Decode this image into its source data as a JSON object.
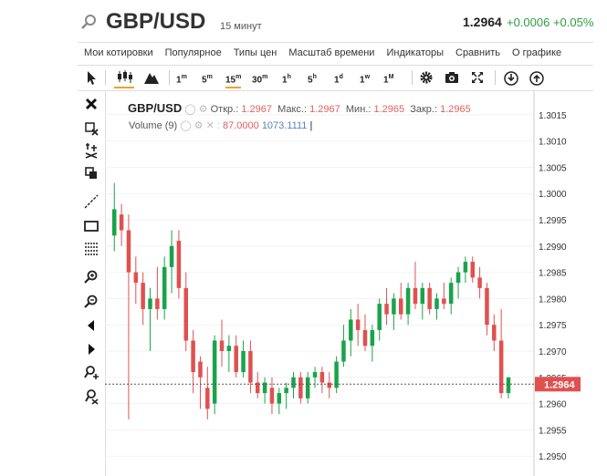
{
  "header": {
    "symbol": "GBP/USD",
    "timeframe": "15 минут",
    "last_price": "1.2964",
    "change": "+0.0006 +0.05%"
  },
  "menu": [
    "Мои котировки",
    "Популярное",
    "Типы цен",
    "Масштаб времени",
    "Индикаторы",
    "Сравнить",
    "О графике"
  ],
  "toolbar": {
    "intervals": [
      {
        "n": "1",
        "u": "m"
      },
      {
        "n": "5",
        "u": "m"
      },
      {
        "n": "15",
        "u": "m"
      },
      {
        "n": "30",
        "u": "m"
      },
      {
        "n": "1",
        "u": "h"
      },
      {
        "n": "5",
        "u": "h"
      },
      {
        "n": "1",
        "u": "d"
      },
      {
        "n": "1",
        "u": "w"
      },
      {
        "n": "1",
        "u": "M"
      }
    ],
    "active_interval": "15m",
    "icons": [
      "cursor-icon",
      "candlestick-icon",
      "mountain-icon",
      "gear-icon",
      "camera-icon",
      "fullscreen-icon",
      "download-icon",
      "upload-icon"
    ]
  },
  "left_tools": [
    "close-icon",
    "delete-drawings-icon",
    "trend-tools-icon",
    "copy-icon",
    "line-icon",
    "rectangle-icon",
    "fibonacci-icon",
    "zoom-in-icon",
    "zoom-out-icon",
    "scroll-left-icon",
    "scroll-right-icon",
    "add-alert-icon",
    "crosshair-icon"
  ],
  "legend": {
    "symbol": "GBP/USD",
    "open_label": "Откр.:",
    "open": "1.2967",
    "high_label": "Макс.:",
    "high": "1.2967",
    "low_label": "Мин.:",
    "low": "1.2965",
    "close_label": "Закр.:",
    "close": "1.2965",
    "volume_label": "Volume (9)",
    "volume_value": "87.0000",
    "volume_ma": "1073.1111"
  },
  "colors": {
    "up": "#1aa34a",
    "down": "#e05050",
    "price_tag": "#e05050",
    "active_tab": "#f0a030"
  },
  "chart_data": {
    "type": "candlestick",
    "title": "GBP/USD",
    "ylim": [
      1.2945,
      1.302
    ],
    "y_ticks": [
      "1.3015",
      "1.3010",
      "1.3005",
      "1.3000",
      "1.2995",
      "1.2990",
      "1.2985",
      "1.2980",
      "1.2975",
      "1.2970",
      "1.2965",
      "1.2960",
      "1.2955",
      "1.2950"
    ],
    "last_price_line": 1.29637,
    "last_price_label": "1.2964",
    "candles": [
      [
        1.2992,
        1.3002,
        1.2989,
        1.2997
      ],
      [
        1.2996,
        1.2998,
        1.299,
        1.2993
      ],
      [
        1.2993,
        1.2996,
        1.2957,
        1.2985
      ],
      [
        1.2985,
        1.2988,
        1.2979,
        1.2983
      ],
      [
        1.2983,
        1.2985,
        1.2975,
        1.2978
      ],
      [
        1.2978,
        1.2982,
        1.297,
        1.298
      ],
      [
        1.298,
        1.2986,
        1.2976,
        1.2978
      ],
      [
        1.2978,
        1.2988,
        1.2976,
        1.2986
      ],
      [
        1.2986,
        1.2993,
        1.2981,
        1.299
      ],
      [
        1.2991,
        1.2993,
        1.298,
        1.2982
      ],
      [
        1.2982,
        1.2985,
        1.297,
        1.2972
      ],
      [
        1.2972,
        1.2974,
        1.2962,
        1.2966
      ],
      [
        1.2968,
        1.2969,
        1.2959,
        1.2965
      ],
      [
        1.2963,
        1.2967,
        1.2957,
        1.2959
      ],
      [
        1.296,
        1.2973,
        1.2958,
        1.2972
      ],
      [
        1.2972,
        1.2976,
        1.2967,
        1.297
      ],
      [
        1.297,
        1.2973,
        1.2966,
        1.2971
      ],
      [
        1.2971,
        1.2973,
        1.2965,
        1.2966
      ],
      [
        1.2966,
        1.2972,
        1.2965,
        1.297
      ],
      [
        1.297,
        1.2972,
        1.2962,
        1.2964
      ],
      [
        1.2964,
        1.2966,
        1.2961,
        1.2962
      ],
      [
        1.2962,
        1.2965,
        1.296,
        1.2964
      ],
      [
        1.2963,
        1.2965,
        1.2958,
        1.296
      ],
      [
        1.296,
        1.2963,
        1.2958,
        1.2962
      ],
      [
        1.2962,
        1.2964,
        1.2959,
        1.2963
      ],
      [
        1.2963,
        1.2966,
        1.2961,
        1.2965
      ],
      [
        1.2965,
        1.2966,
        1.296,
        1.2961
      ],
      [
        1.2961,
        1.2966,
        1.296,
        1.2965
      ],
      [
        1.2965,
        1.2967,
        1.2963,
        1.2966
      ],
      [
        1.2966,
        1.2967,
        1.2962,
        1.2964
      ],
      [
        1.2964,
        1.2966,
        1.2961,
        1.2963
      ],
      [
        1.2963,
        1.2969,
        1.2962,
        1.2968
      ],
      [
        1.2968,
        1.2975,
        1.2967,
        1.2972
      ],
      [
        1.2972,
        1.2978,
        1.2969,
        1.2976
      ],
      [
        1.2976,
        1.2979,
        1.2971,
        1.2974
      ],
      [
        1.2974,
        1.2977,
        1.297,
        1.2971
      ],
      [
        1.2971,
        1.2975,
        1.2968,
        1.2974
      ],
      [
        1.2974,
        1.298,
        1.2972,
        1.2979
      ],
      [
        1.2979,
        1.2982,
        1.2975,
        1.2977
      ],
      [
        1.2977,
        1.2981,
        1.2974,
        1.298
      ],
      [
        1.298,
        1.2983,
        1.2976,
        1.2977
      ],
      [
        1.2977,
        1.2983,
        1.2975,
        1.2982
      ],
      [
        1.2982,
        1.2987,
        1.2978,
        1.2979
      ],
      [
        1.2979,
        1.2983,
        1.2976,
        1.2982
      ],
      [
        1.2982,
        1.2983,
        1.2977,
        1.2978
      ],
      [
        1.2978,
        1.2981,
        1.2976,
        1.298
      ],
      [
        1.298,
        1.2983,
        1.2978,
        1.2979
      ],
      [
        1.2979,
        1.2984,
        1.2977,
        1.2983
      ],
      [
        1.2983,
        1.2986,
        1.298,
        1.2985
      ],
      [
        1.2985,
        1.2988,
        1.2983,
        1.2987
      ],
      [
        1.2987,
        1.2988,
        1.2983,
        1.2984
      ],
      [
        1.2984,
        1.2986,
        1.298,
        1.2982
      ],
      [
        1.2982,
        1.2983,
        1.2973,
        1.2975
      ],
      [
        1.2975,
        1.2977,
        1.297,
        1.2972
      ],
      [
        1.2972,
        1.2978,
        1.2961,
        1.2962
      ],
      [
        1.2962,
        1.2965,
        1.2961,
        1.2965
      ]
    ]
  }
}
